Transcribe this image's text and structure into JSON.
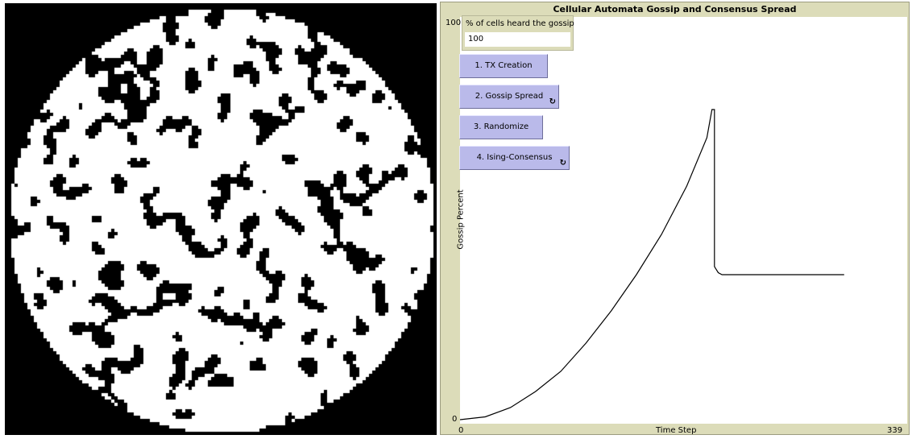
{
  "plot": {
    "title": "Cellular Automata Gossip and Consensus Spread",
    "y_label": "Gossip Percent",
    "x_label": "Time Step",
    "y_min_label": "0",
    "y_max_label": "100",
    "x_min_label": "0",
    "x_max_label": "339"
  },
  "monitor": {
    "label": "% of cells heard the gossip",
    "value": "100"
  },
  "buttons": {
    "tx_creation": "1. TX Creation",
    "gossip_spread": "2. Gossip Spread",
    "randomize": "3. Randomize",
    "ising_consensus": "4. Ising-Consensus",
    "forever_icon": "loop-arrows-icon"
  },
  "colors": {
    "world_bg": "#000000",
    "cell_on": "#ffffff",
    "panel_bg": "#dcdcb9",
    "button_bg": "#babaea",
    "pen": "#000000"
  },
  "chart_data": {
    "type": "line",
    "xlabel": "Time Step",
    "ylabel": "Gossip Percent",
    "xlim": [
      0,
      339
    ],
    "ylim": [
      0,
      100
    ],
    "series": [
      {
        "values": [
          [
            0,
            0
          ],
          [
            20,
            0.7
          ],
          [
            40,
            3
          ],
          [
            60,
            7
          ],
          [
            80,
            12
          ],
          [
            100,
            19
          ],
          [
            120,
            27
          ],
          [
            140,
            36
          ],
          [
            160,
            46
          ],
          [
            180,
            58
          ],
          [
            196,
            70
          ],
          [
            200,
            77
          ],
          [
            202,
            77
          ],
          [
            202,
            38
          ],
          [
            205,
            36.5
          ],
          [
            208,
            36
          ],
          [
            240,
            36
          ],
          [
            280,
            36
          ],
          [
            305,
            36
          ]
        ]
      }
    ]
  }
}
